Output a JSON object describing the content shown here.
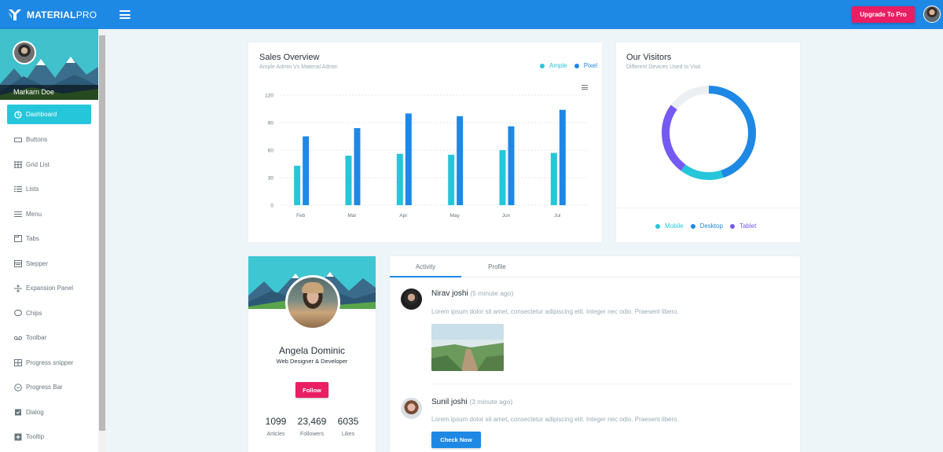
{
  "app": {
    "logo_bold": "MATERIAL",
    "logo_light": "PRO",
    "upgrade_label": "Upgrade To Pro"
  },
  "sidebar": {
    "user_name": "Markarn Doe",
    "items": [
      {
        "label": "Dashboard",
        "icon": "dashboard-icon",
        "active": true
      },
      {
        "label": "Buttons",
        "icon": "button-icon"
      },
      {
        "label": "Grid List",
        "icon": "grid-icon"
      },
      {
        "label": "Lists",
        "icon": "list-icon"
      },
      {
        "label": "Menu",
        "icon": "menu-icon"
      },
      {
        "label": "Tabs",
        "icon": "tab-icon"
      },
      {
        "label": "Stepper",
        "icon": "stepper-icon"
      },
      {
        "label": "Expansion Panel",
        "icon": "expand-icon"
      },
      {
        "label": "Chips",
        "icon": "chip-icon"
      },
      {
        "label": "Toolbar",
        "icon": "toolbar-icon"
      },
      {
        "label": "Progress snipper",
        "icon": "spinner-icon"
      },
      {
        "label": "Progress Bar",
        "icon": "progress-icon"
      },
      {
        "label": "Dialog",
        "icon": "dialog-icon"
      },
      {
        "label": "Tooltip",
        "icon": "tooltip-icon"
      }
    ]
  },
  "sales": {
    "title": "Sales Overview",
    "subtitle": "Ample Admin Vs Material Admin"
  },
  "chart_data": {
    "type": "bar",
    "categories": [
      "Feb",
      "Mar",
      "Apr",
      "May",
      "Jun",
      "Jul"
    ],
    "series": [
      {
        "name": "Ample",
        "color": "#26c6da",
        "values": [
          43,
          54,
          56,
          55,
          60,
          57
        ]
      },
      {
        "name": "Pixel",
        "color": "#1e88e5",
        "values": [
          75,
          84,
          100,
          97,
          86,
          104
        ]
      }
    ],
    "yticks": [
      0,
      30,
      60,
      90,
      120
    ],
    "ylim": [
      0,
      120
    ],
    "grid": true,
    "legend": "top-right"
  },
  "visitors": {
    "title": "Our Visitors",
    "subtitle": "Different Devices Used to Visit",
    "chart_data": {
      "type": "pie",
      "labels": [
        "Mobile",
        "Desktop",
        "Tablet"
      ],
      "colors": [
        "#26c6da",
        "#1e88e5",
        "#745af2"
      ],
      "values": [
        15,
        45,
        25
      ],
      "remainder_color": "#eceff1",
      "remainder": 15
    }
  },
  "profile": {
    "name": "Angela Dominic",
    "role": "Web Designer & Developer",
    "follow_label": "Follow",
    "stats": [
      {
        "value": "1099",
        "label": "Articles"
      },
      {
        "value": "23,469",
        "label": "Followers"
      },
      {
        "value": "6035",
        "label": "Likes"
      }
    ]
  },
  "activity": {
    "tabs": [
      "Activity",
      "Profile"
    ],
    "feed": [
      {
        "name": "Nirav joshi",
        "time": "(5 minute ago)",
        "text": "Lorem ipsum dolor sit amet, consectetur adipiscing elit. Integer nec odio. Praesent libero."
      },
      {
        "name": "Sunil joshi",
        "time": "(3 minute ago)",
        "text": "Lorem ipsum dolor sit amet, consectetur adipiscing elit. Integer nec odio. Praesent libero."
      }
    ],
    "check_label": "Check Now"
  }
}
